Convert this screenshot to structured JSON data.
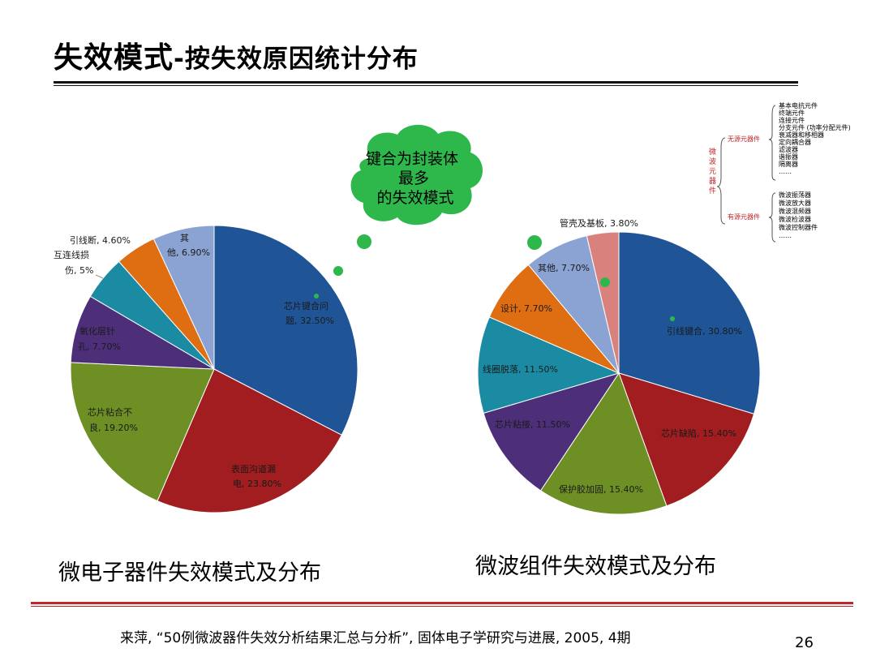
{
  "title": {
    "main": "失效模式",
    "sub": "-按失效原因统计分布"
  },
  "bubble": {
    "line1": "键合为封装体",
    "line2": "最多",
    "line3": "的失效模式"
  },
  "chart_data": [
    {
      "type": "pie",
      "title": "微电子器件失效模式及分布",
      "slices": [
        {
          "line1": "芯片键合问",
          "line2": "题, 32.50%",
          "value": 32.5,
          "color": "#1f5597"
        },
        {
          "line1": "表面沟道漏",
          "line2": "电, 23.80%",
          "value": 23.8,
          "color": "#a11d20"
        },
        {
          "line1": "芯片粘合不",
          "line2": "良, 19.20%",
          "value": 19.2,
          "color": "#6d8f24"
        },
        {
          "line1": "氧化层针",
          "line2": "孔, 7.70%",
          "value": 7.7,
          "color": "#4d2f79"
        },
        {
          "line1": "互连线损",
          "line2": "伤, 5%",
          "value": 5.0,
          "color": "#1b8ba4"
        },
        {
          "line1": "引线断, 4.60%",
          "line2": "",
          "value": 4.6,
          "color": "#df6d12"
        },
        {
          "line1": "其",
          "line2": "他, 6.90%",
          "value": 6.9,
          "color": "#8aa3d3"
        }
      ]
    },
    {
      "type": "pie",
      "title": "微波组件失效模式及分布",
      "slices": [
        {
          "label": "引线键合, 30.80%",
          "value": 30.8,
          "color": "#1f5597"
        },
        {
          "label": "芯片缺陷, 15.40%",
          "value": 15.4,
          "color": "#a11d20"
        },
        {
          "label": "保护胶加固, 15.40%",
          "value": 15.4,
          "color": "#6d8f24"
        },
        {
          "label": "芯片粘接, 11.50%",
          "value": 11.5,
          "color": "#4d2f79"
        },
        {
          "label": "线圈脱落, 11.50%",
          "value": 11.5,
          "color": "#1b8ba4"
        },
        {
          "label": "设计, 7.70%",
          "value": 7.7,
          "color": "#df6d12"
        },
        {
          "label": "其他, 7.70%",
          "value": 7.7,
          "color": "#8aa3d3"
        },
        {
          "label": "管壳及基板, 3.80%",
          "value": 3.8,
          "color": "#d9827d"
        }
      ]
    }
  ],
  "tree": {
    "root": "微波元器件",
    "passive": {
      "label": "无源元器件",
      "items": [
        "基本电抗元件",
        "终端元件",
        "连接元件",
        "分支元件 (功率分配元件)",
        "衰减器和移相器",
        "定向耦合器",
        "滤波器",
        "谐振器",
        "隔离器",
        "……"
      ]
    },
    "active": {
      "label": "有源元器件",
      "items": [
        "微波振荡器",
        "微波放大器",
        "微波混频器",
        "微波检波器",
        "微波控制器件",
        "……"
      ]
    }
  },
  "source": "来萍, “50例微波器件失效分析结果汇总与分析”, 固体电子学研究与进展, 2005, 4期",
  "page_number": "26"
}
